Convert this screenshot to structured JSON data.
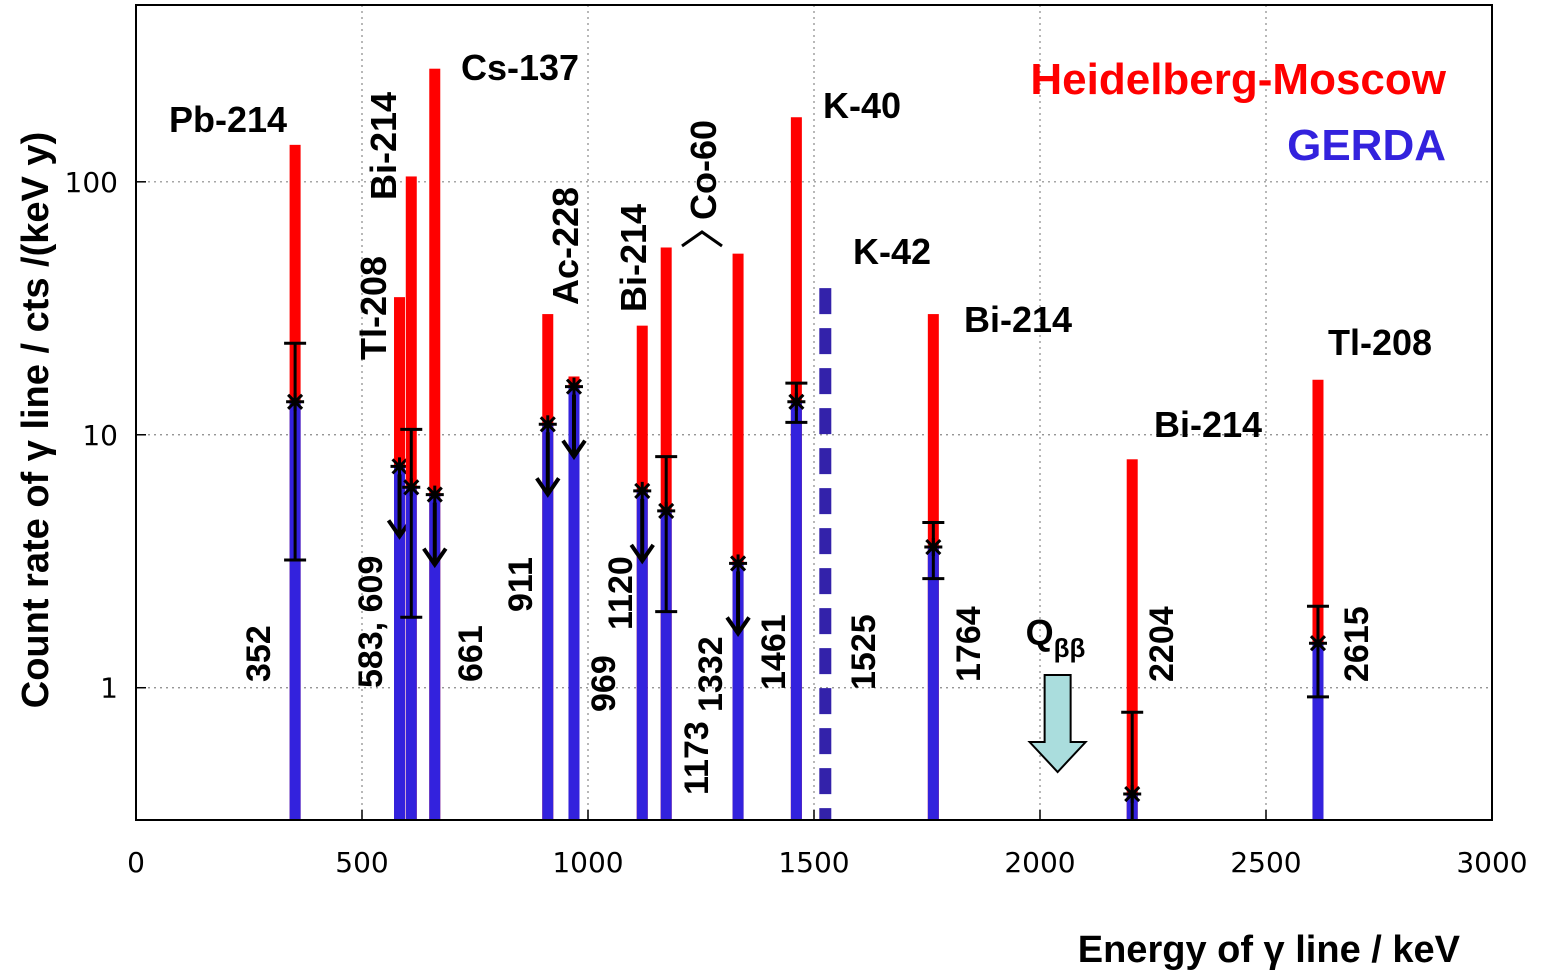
{
  "chart_data": {
    "type": "bar",
    "title": "",
    "xlabel": "Energy of γ line  / keV",
    "ylabel": "Count  rate of  γ line  / cts /(keV y)",
    "xlim": [
      0,
      3000
    ],
    "ylim": [
      0.3,
      500
    ],
    "yscale": "log",
    "grid": true,
    "x_ticks": [
      "0",
      "500",
      "1000",
      "1500",
      "2000",
      "2500",
      "3000"
    ],
    "y_ticks": [
      "1",
      "10",
      "100"
    ],
    "series": [
      {
        "name": "Heidelberg-Moscow",
        "color": "#ff0000"
      },
      {
        "name": "GERDA",
        "color": "#3322dd"
      }
    ],
    "lines": [
      {
        "energy": 352,
        "energy_label": "352",
        "hdm": 140,
        "gerda": 13.5,
        "err_low": 3.2,
        "err_high": 23,
        "upper_limit": false
      },
      {
        "energy": 583,
        "hdm": 35,
        "gerda": 7.5,
        "upper_limit": true
      },
      {
        "energy": 609,
        "hdm": 105,
        "gerda": 6.2,
        "err_low": 1.9,
        "err_high": 10.5,
        "upper_limit": false
      },
      {
        "energy": 661,
        "energy_label": "661",
        "hdm": 280,
        "gerda": 5.8,
        "upper_limit": true
      },
      {
        "energy": 911,
        "energy_label": "911",
        "hdm": 30,
        "gerda": 11,
        "upper_limit": true
      },
      {
        "energy": 969,
        "energy_label": "969",
        "hdm": 17,
        "gerda": 15.5,
        "upper_limit": true
      },
      {
        "energy": 1120,
        "energy_label": "1120",
        "hdm": 27,
        "gerda": 6,
        "upper_limit": true
      },
      {
        "energy": 1173,
        "energy_label": "1173",
        "hdm": 55,
        "gerda": 5,
        "err_low": 2,
        "err_high": 8.2,
        "upper_limit": false
      },
      {
        "energy": 1332,
        "energy_label": "1332",
        "hdm": 52,
        "gerda": 3.1,
        "upper_limit": true
      },
      {
        "energy": 1461,
        "energy_label": "1461",
        "hdm": 180,
        "gerda": 13.5,
        "err_low": 11.2,
        "err_high": 16,
        "upper_limit": false
      },
      {
        "energy": 1525,
        "energy_label": "1525",
        "gerda": 38,
        "dashed": true
      },
      {
        "energy": 1764,
        "energy_label": "1764",
        "hdm": 30,
        "gerda": 3.6,
        "err_low": 2.7,
        "err_high": 4.5,
        "upper_limit": false
      },
      {
        "energy": 2204,
        "energy_label": "2204",
        "hdm": 8,
        "gerda": 0.38,
        "err_low": 0.3,
        "err_high": 0.8,
        "upper_limit": false
      },
      {
        "energy": 2615,
        "energy_label": "2615",
        "hdm": 16.5,
        "gerda": 1.5,
        "err_low": 0.92,
        "err_high": 2.1,
        "upper_limit": false
      }
    ],
    "combined_energy_label": "583, 609",
    "isotope_labels": [
      {
        "text": "Pb-214",
        "energy": 352
      },
      {
        "text": "Tl-208",
        "energy": 583,
        "vertical": true
      },
      {
        "text": "Bi-214",
        "energy": 609,
        "vertical": true
      },
      {
        "text": "Cs-137",
        "energy": 661
      },
      {
        "text": "Ac-228",
        "energy": 940,
        "vertical": true
      },
      {
        "text": "Bi-214",
        "energy": 1120,
        "vertical": true
      },
      {
        "text": "Co-60",
        "energy": 1250,
        "vertical": true
      },
      {
        "text": "K-40",
        "energy": 1461
      },
      {
        "text": "K-42",
        "energy": 1525,
        "color": "#4433aa"
      },
      {
        "text": "Bi-214",
        "energy": 1764
      },
      {
        "text": "Bi-214",
        "energy": 2204
      },
      {
        "text": "Tl-208",
        "energy": 2615
      }
    ],
    "annotations": [
      {
        "text": "Q",
        "subscript": "ββ",
        "energy": 2039,
        "marker": "down-arrow",
        "color": "#aadddd"
      }
    ]
  }
}
